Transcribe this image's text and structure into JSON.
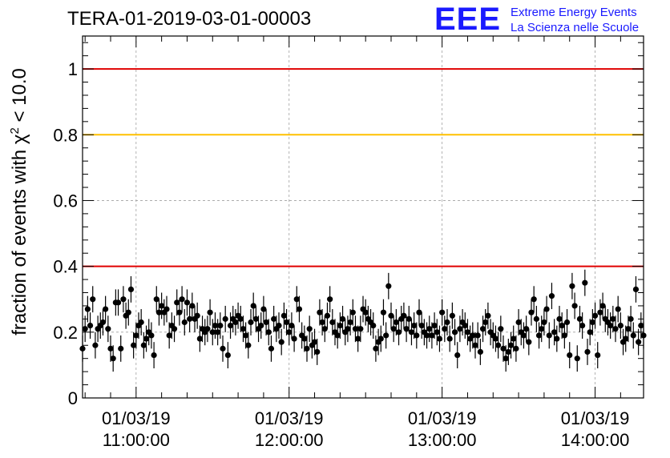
{
  "title": "TERA-01-2019-03-01-00003",
  "logo": {
    "mark": "EEE",
    "line1": "Extreme Energy Events",
    "line2": "La Scienza nelle Scuole"
  },
  "colors": {
    "red_line": "#e00000",
    "yellow_line": "#ffc000",
    "markers": "#000000",
    "grid": "#a0a0a0",
    "logo_blue": "#1a1aff"
  },
  "chart_data": {
    "type": "scatter",
    "title": "TERA-01-2019-03-01-00003",
    "xlabel": "",
    "ylabel": "fraction of events with χ² < 10.0",
    "x_type": "time",
    "xlim": [
      "2019-03-01 10:39",
      "2019-03-01 14:19"
    ],
    "ylim": [
      0,
      1.1
    ],
    "grid": true,
    "y_ticks": [
      0,
      0.2,
      0.4,
      0.6,
      0.8,
      1
    ],
    "y_tick_labels": [
      "0",
      "0.2",
      "0.4",
      "0.6",
      "0.8",
      "1"
    ],
    "x_ticks": [
      {
        "x": "2019-03-01 11:00",
        "date": "01/03/19",
        "time": "11:00:00"
      },
      {
        "x": "2019-03-01 12:00",
        "date": "01/03/19",
        "time": "12:00:00"
      },
      {
        "x": "2019-03-01 13:00",
        "date": "01/03/19",
        "time": "13:00:00"
      },
      {
        "x": "2019-03-01 14:00",
        "date": "01/03/19",
        "time": "14:00:00"
      }
    ],
    "reference_lines": [
      {
        "y": 1.0,
        "color": "#e00000"
      },
      {
        "y": 0.8,
        "color": "#ffc000"
      },
      {
        "y": 0.4,
        "color": "#e00000"
      }
    ],
    "series": [
      {
        "x_start": "2019-03-01 10:39",
        "x_step_minutes": 1,
        "y_error": 0.04,
        "y": [
          0.15,
          0.21,
          0.27,
          0.22,
          0.3,
          0.16,
          0.21,
          0.22,
          0.23,
          0.27,
          0.21,
          0.15,
          0.12,
          0.29,
          0.29,
          0.15,
          0.3,
          0.25,
          0.26,
          0.33,
          0.16,
          0.19,
          0.22,
          0.23,
          0.16,
          0.18,
          0.2,
          0.19,
          0.13,
          0.3,
          0.26,
          0.28,
          0.26,
          0.27,
          0.19,
          0.22,
          0.21,
          0.29,
          0.26,
          0.3,
          0.23,
          0.29,
          0.24,
          0.28,
          0.24,
          0.25,
          0.18,
          0.21,
          0.2,
          0.21,
          0.26,
          0.2,
          0.22,
          0.2,
          0.22,
          0.15,
          0.24,
          0.13,
          0.22,
          0.24,
          0.23,
          0.25,
          0.24,
          0.21,
          0.19,
          0.16,
          0.23,
          0.28,
          0.24,
          0.21,
          0.22,
          0.27,
          0.23,
          0.2,
          0.15,
          0.24,
          0.21,
          0.22,
          0.17,
          0.25,
          0.23,
          0.2,
          0.22,
          0.18,
          0.3,
          0.27,
          0.19,
          0.18,
          0.15,
          0.21,
          0.16,
          0.17,
          0.14,
          0.26,
          0.23,
          0.21,
          0.25,
          0.3,
          0.23,
          0.2,
          0.19,
          0.22,
          0.24,
          0.2,
          0.21,
          0.23,
          0.26,
          0.21,
          0.18,
          0.21,
          0.27,
          0.26,
          0.24,
          0.23,
          0.22,
          0.15,
          0.17,
          0.18,
          0.26,
          0.19,
          0.34,
          0.25,
          0.21,
          0.23,
          0.2,
          0.24,
          0.25,
          0.21,
          0.24,
          0.2,
          0.22,
          0.19,
          0.26,
          0.22,
          0.2,
          0.19,
          0.21,
          0.19,
          0.22,
          0.2,
          0.18,
          0.26,
          0.21,
          0.23,
          0.18,
          0.25,
          0.2,
          0.13,
          0.21,
          0.23,
          0.22,
          0.2,
          0.18,
          0.19,
          0.16,
          0.19,
          0.14,
          0.21,
          0.23,
          0.25,
          0.2,
          0.19,
          0.18,
          0.16,
          0.21,
          0.15,
          0.12,
          0.14,
          0.16,
          0.18,
          0.15,
          0.23,
          0.2,
          0.19,
          0.21,
          0.17,
          0.26,
          0.3,
          0.24,
          0.19,
          0.21,
          0.23,
          0.27,
          0.19,
          0.31,
          0.2,
          0.18,
          0.24,
          0.22,
          0.19,
          0.23,
          0.13,
          0.34,
          0.28,
          0.12,
          0.24,
          0.22,
          0.35,
          0.14,
          0.2,
          0.23,
          0.25,
          0.13,
          0.26,
          0.28,
          0.24,
          0.23,
          0.22,
          0.24,
          0.21,
          0.27,
          0.22,
          0.17,
          0.18,
          0.21,
          0.24,
          0.19,
          0.33,
          0.17,
          0.22,
          0.19,
          0.26,
          0.21,
          0.17,
          0.19,
          0.2,
          0.16,
          0.2,
          0.21,
          0.19,
          0.25,
          0.18,
          0.2,
          0.3,
          0.24,
          0.21,
          0.25
        ]
      }
    ]
  }
}
